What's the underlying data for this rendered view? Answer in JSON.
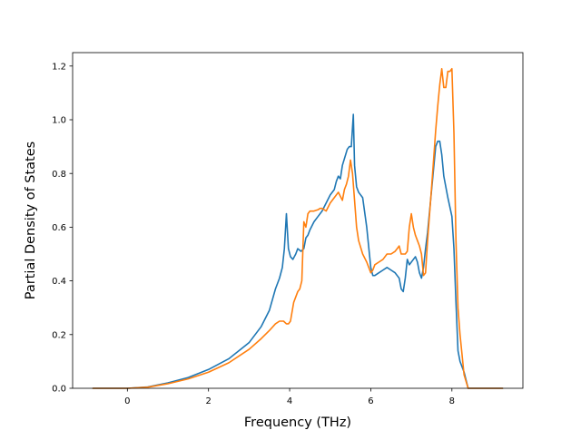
{
  "chart_data": {
    "type": "line",
    "title": "",
    "xlabel": "Frequency (THz)",
    "ylabel": "Partial Density of States",
    "xlim": [
      -1.35,
      9.75
    ],
    "ylim": [
      0.0,
      1.25
    ],
    "xticks": [
      0,
      2,
      4,
      6,
      8
    ],
    "xtick_labels": [
      "0",
      "2",
      "4",
      "6",
      "8"
    ],
    "yticks": [
      0.0,
      0.2,
      0.4,
      0.6,
      0.8,
      1.0,
      1.2
    ],
    "ytick_labels": [
      "0.0",
      "0.2",
      "0.4",
      "0.6",
      "0.8",
      "1.0",
      "1.2"
    ],
    "grid": false,
    "legend": "none",
    "series": [
      {
        "color": "#1f77b4",
        "x": [
          -0.85,
          -0.5,
          0.0,
          0.5,
          1.0,
          1.5,
          2.0,
          2.5,
          3.0,
          3.3,
          3.5,
          3.65,
          3.75,
          3.82,
          3.87,
          3.92,
          3.97,
          4.02,
          4.08,
          4.15,
          4.2,
          4.28,
          4.35,
          4.4,
          4.45,
          4.5,
          4.6,
          4.7,
          4.8,
          4.9,
          5.0,
          5.1,
          5.15,
          5.2,
          5.25,
          5.3,
          5.38,
          5.42,
          5.47,
          5.52,
          5.57,
          5.6,
          5.65,
          5.7,
          5.8,
          5.9,
          6.0,
          6.05,
          6.1,
          6.2,
          6.3,
          6.4,
          6.5,
          6.6,
          6.65,
          6.7,
          6.75,
          6.8,
          6.85,
          6.9,
          6.95,
          7.0,
          7.05,
          7.1,
          7.15,
          7.2,
          7.25,
          7.3,
          7.35,
          7.4,
          7.5,
          7.6,
          7.65,
          7.7,
          7.75,
          7.8,
          7.9,
          8.0,
          8.05,
          8.1,
          8.15,
          8.2,
          8.3,
          8.4,
          8.5,
          9.0,
          9.25
        ],
        "y": [
          0.0,
          0.0,
          0.0,
          0.005,
          0.02,
          0.04,
          0.07,
          0.11,
          0.17,
          0.23,
          0.29,
          0.37,
          0.41,
          0.45,
          0.52,
          0.65,
          0.52,
          0.49,
          0.48,
          0.5,
          0.52,
          0.51,
          0.52,
          0.56,
          0.57,
          0.59,
          0.62,
          0.64,
          0.66,
          0.69,
          0.72,
          0.74,
          0.77,
          0.79,
          0.78,
          0.83,
          0.87,
          0.89,
          0.9,
          0.9,
          1.02,
          0.83,
          0.75,
          0.73,
          0.71,
          0.6,
          0.45,
          0.42,
          0.42,
          0.43,
          0.44,
          0.45,
          0.44,
          0.43,
          0.42,
          0.41,
          0.37,
          0.36,
          0.41,
          0.48,
          0.46,
          0.47,
          0.48,
          0.49,
          0.47,
          0.43,
          0.41,
          0.45,
          0.52,
          0.58,
          0.74,
          0.9,
          0.92,
          0.92,
          0.87,
          0.79,
          0.71,
          0.64,
          0.52,
          0.32,
          0.14,
          0.1,
          0.06,
          0.0,
          0.0,
          0.0,
          0.0
        ]
      },
      {
        "color": "#ff7f0e",
        "x": [
          -0.85,
          -0.5,
          0.0,
          0.5,
          1.0,
          1.5,
          2.0,
          2.5,
          3.0,
          3.3,
          3.5,
          3.65,
          3.75,
          3.85,
          3.92,
          3.97,
          4.02,
          4.1,
          4.2,
          4.25,
          4.3,
          4.35,
          4.4,
          4.45,
          4.5,
          4.6,
          4.7,
          4.75,
          4.8,
          4.9,
          5.0,
          5.1,
          5.2,
          5.3,
          5.35,
          5.4,
          5.45,
          5.5,
          5.55,
          5.6,
          5.65,
          5.7,
          5.8,
          5.9,
          6.0,
          6.05,
          6.1,
          6.2,
          6.3,
          6.4,
          6.5,
          6.6,
          6.65,
          6.7,
          6.75,
          6.8,
          6.85,
          6.9,
          6.95,
          7.0,
          7.05,
          7.1,
          7.15,
          7.2,
          7.25,
          7.3,
          7.35,
          7.4,
          7.5,
          7.6,
          7.65,
          7.7,
          7.75,
          7.8,
          7.85,
          7.9,
          7.95,
          8.0,
          8.05,
          8.1,
          8.15,
          8.2,
          8.3,
          8.4,
          8.5,
          9.0,
          9.25
        ],
        "y": [
          0.0,
          0.0,
          0.0,
          0.004,
          0.017,
          0.035,
          0.06,
          0.095,
          0.145,
          0.185,
          0.215,
          0.24,
          0.25,
          0.25,
          0.24,
          0.24,
          0.25,
          0.32,
          0.36,
          0.37,
          0.4,
          0.62,
          0.6,
          0.65,
          0.66,
          0.66,
          0.665,
          0.67,
          0.67,
          0.66,
          0.69,
          0.71,
          0.73,
          0.7,
          0.74,
          0.76,
          0.79,
          0.85,
          0.8,
          0.7,
          0.6,
          0.55,
          0.5,
          0.47,
          0.43,
          0.44,
          0.46,
          0.47,
          0.48,
          0.5,
          0.5,
          0.51,
          0.52,
          0.53,
          0.5,
          0.5,
          0.5,
          0.51,
          0.6,
          0.65,
          0.6,
          0.57,
          0.55,
          0.53,
          0.5,
          0.42,
          0.43,
          0.55,
          0.75,
          0.96,
          1.05,
          1.13,
          1.19,
          1.12,
          1.12,
          1.18,
          1.18,
          1.19,
          0.95,
          0.55,
          0.3,
          0.2,
          0.05,
          0.0,
          0.0,
          0.0,
          0.0
        ]
      }
    ]
  }
}
